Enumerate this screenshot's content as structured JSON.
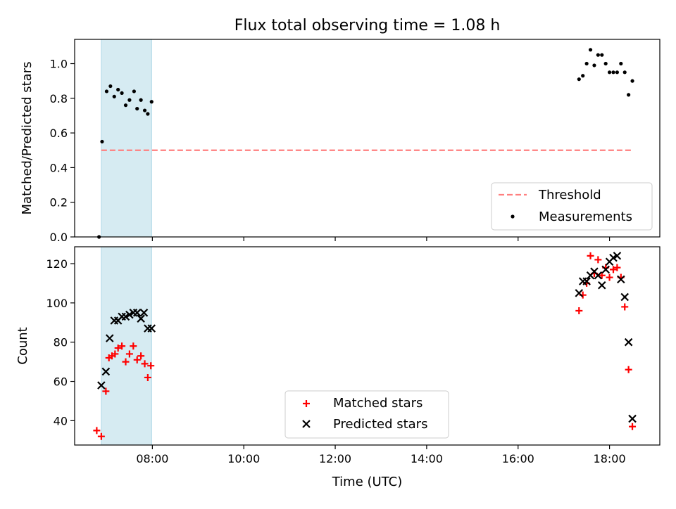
{
  "title": "Flux total observing time = 1.08 h",
  "xlabel": "Time (UTC)",
  "colors": {
    "threshold": "#ff7f7f",
    "measurement": "#000000",
    "matched": "#ff0000",
    "predicted": "#000000",
    "shade": "#add8e6"
  },
  "chart_data": [
    {
      "type": "scatter",
      "panel": "top",
      "ylabel": "Matched/Predicted stars",
      "ylim": [
        0.0,
        1.14
      ],
      "yticks": [
        0.0,
        0.2,
        0.4,
        0.6,
        0.8,
        1.0
      ],
      "xlim": [
        "06:18",
        "19:06"
      ],
      "xticks": [
        "08:00",
        "10:00",
        "12:00",
        "14:00",
        "16:00",
        "18:00"
      ],
      "shaded_span": [
        "06:53",
        "07:59"
      ],
      "legend": {
        "position": "lower-right",
        "entries": [
          "Threshold",
          "Measurements"
        ]
      },
      "threshold": {
        "name": "Threshold",
        "y": 0.5,
        "x": [
          "06:53",
          "18:30"
        ]
      },
      "series": [
        {
          "name": "Measurements",
          "points": [
            [
              "06:50",
              0.0
            ],
            [
              "06:54",
              0.55
            ],
            [
              "07:00",
              0.84
            ],
            [
              "07:05",
              0.87
            ],
            [
              "07:10",
              0.81
            ],
            [
              "07:15",
              0.85
            ],
            [
              "07:20",
              0.83
            ],
            [
              "07:25",
              0.76
            ],
            [
              "07:30",
              0.79
            ],
            [
              "07:36",
              0.84
            ],
            [
              "07:40",
              0.74
            ],
            [
              "07:45",
              0.79
            ],
            [
              "07:50",
              0.73
            ],
            [
              "07:54",
              0.71
            ],
            [
              "07:59",
              0.78
            ],
            [
              "17:20",
              0.91
            ],
            [
              "17:25",
              0.93
            ],
            [
              "17:30",
              1.0
            ],
            [
              "17:35",
              1.08
            ],
            [
              "17:40",
              0.99
            ],
            [
              "17:45",
              1.05
            ],
            [
              "17:50",
              1.05
            ],
            [
              "17:55",
              1.0
            ],
            [
              "18:00",
              0.95
            ],
            [
              "18:05",
              0.95
            ],
            [
              "18:10",
              0.95
            ],
            [
              "18:15",
              1.0
            ],
            [
              "18:20",
              0.95
            ],
            [
              "18:25",
              0.82
            ],
            [
              "18:30",
              0.9
            ]
          ]
        }
      ]
    },
    {
      "type": "scatter",
      "panel": "bottom",
      "ylabel": "Count",
      "ylim": [
        27.6,
        128.6
      ],
      "yticks": [
        40,
        60,
        80,
        100,
        120
      ],
      "xlim": [
        "06:18",
        "19:06"
      ],
      "xticks": [
        "08:00",
        "10:00",
        "12:00",
        "14:00",
        "16:00",
        "18:00"
      ],
      "shaded_span": [
        "06:53",
        "07:59"
      ],
      "legend": {
        "position": "lower-center",
        "entries": [
          "Matched stars",
          "Predicted stars"
        ]
      },
      "series": [
        {
          "name": "Matched stars",
          "marker": "plus",
          "points": [
            [
              "06:47",
              35
            ],
            [
              "06:53",
              32
            ],
            [
              "06:59",
              55
            ],
            [
              "07:03",
              72
            ],
            [
              "07:07",
              73
            ],
            [
              "07:11",
              74
            ],
            [
              "07:15",
              77
            ],
            [
              "07:20",
              78
            ],
            [
              "07:25",
              70
            ],
            [
              "07:30",
              74
            ],
            [
              "07:35",
              78
            ],
            [
              "07:40",
              71
            ],
            [
              "07:45",
              73
            ],
            [
              "07:50",
              69
            ],
            [
              "07:54",
              62
            ],
            [
              "07:58",
              68
            ],
            [
              "17:20",
              96
            ],
            [
              "17:25",
              104
            ],
            [
              "17:30",
              110
            ],
            [
              "17:35",
              124
            ],
            [
              "17:40",
              115
            ],
            [
              "17:45",
              122
            ],
            [
              "17:50",
              114
            ],
            [
              "17:55",
              118
            ],
            [
              "18:00",
              113
            ],
            [
              "18:05",
              117
            ],
            [
              "18:10",
              118
            ],
            [
              "18:15",
              113
            ],
            [
              "18:20",
              98
            ],
            [
              "18:25",
              66
            ],
            [
              "18:30",
              37
            ]
          ]
        },
        {
          "name": "Predicted stars",
          "marker": "x",
          "points": [
            [
              "06:53",
              58
            ],
            [
              "06:59",
              65
            ],
            [
              "07:04",
              82
            ],
            [
              "07:10",
              91
            ],
            [
              "07:15",
              91
            ],
            [
              "07:20",
              93
            ],
            [
              "07:25",
              93
            ],
            [
              "07:30",
              94
            ],
            [
              "07:35",
              95
            ],
            [
              "07:40",
              95
            ],
            [
              "07:45",
              92
            ],
            [
              "07:49",
              95
            ],
            [
              "07:54",
              87
            ],
            [
              "07:59",
              87
            ],
            [
              "17:20",
              105
            ],
            [
              "17:25",
              111
            ],
            [
              "17:30",
              111
            ],
            [
              "17:35",
              114
            ],
            [
              "17:40",
              116
            ],
            [
              "17:45",
              114
            ],
            [
              "17:50",
              109
            ],
            [
              "17:55",
              117
            ],
            [
              "18:00",
              121
            ],
            [
              "18:05",
              123
            ],
            [
              "18:10",
              124
            ],
            [
              "18:15",
              112
            ],
            [
              "18:20",
              103
            ],
            [
              "18:25",
              80
            ],
            [
              "18:30",
              41
            ]
          ]
        }
      ]
    }
  ]
}
